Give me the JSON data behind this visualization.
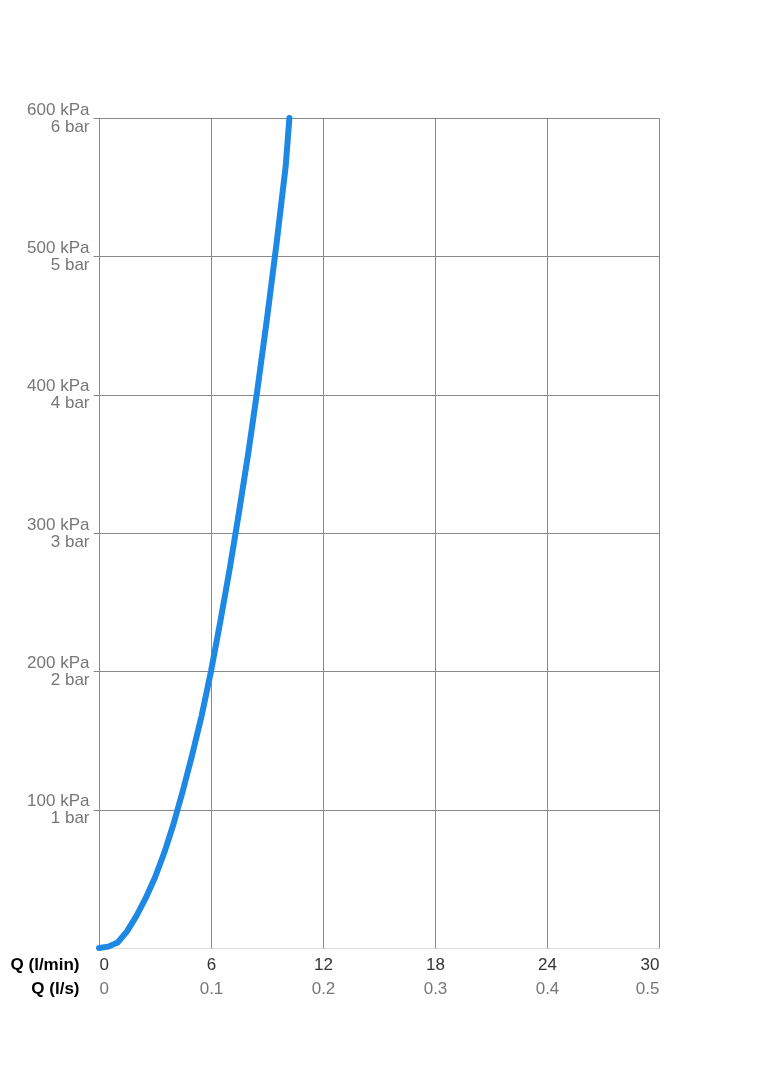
{
  "chart_data": {
    "type": "line",
    "xlabel": "Q (l/min)",
    "x2label": "Q (l/s)",
    "x": [
      0,
      0.5,
      1,
      1.5,
      2,
      2.5,
      3,
      3.5,
      4,
      4.5,
      5,
      5.5,
      6,
      6.5,
      7,
      7.5,
      8,
      8.5,
      9,
      9.5,
      10,
      10.2
    ],
    "series": [
      {
        "color": "#1e88e5",
        "values": [
          0,
          1,
          4,
          12,
          23,
          36,
          51,
          69,
          90,
          114,
          140,
          168,
          200,
          236,
          274,
          315,
          358,
          405,
          455,
          508,
          565,
          600
        ]
      }
    ],
    "xlim": [
      0,
      30
    ],
    "xticks": [
      0,
      6,
      12,
      18,
      24,
      30
    ],
    "x2lim": [
      0,
      0.5
    ],
    "x2ticks": [
      0,
      0.1,
      0.2,
      0.3,
      0.4,
      0.5
    ],
    "ylim": [
      0,
      600
    ],
    "yticks": [
      {
        "value": 100,
        "label": "100 kPa"
      },
      {
        "value": 200,
        "label": "200 kPa"
      },
      {
        "value": 300,
        "label": "300 kPa"
      },
      {
        "value": 400,
        "label": "400 kPa"
      },
      {
        "value": 500,
        "label": "500 kPa"
      },
      {
        "value": 600,
        "label": "600 kPa"
      }
    ],
    "y2lim": [
      0,
      6
    ],
    "y2ticks": [
      {
        "value": 1,
        "label": "1 bar"
      },
      {
        "value": 2,
        "label": "2 bar"
      },
      {
        "value": 3,
        "label": "3 bar"
      },
      {
        "value": 4,
        "label": "4 bar"
      },
      {
        "value": 5,
        "label": "5 bar"
      },
      {
        "value": 6,
        "label": "6 bar"
      }
    ],
    "grid": true,
    "marker": "none",
    "line_style": "solid"
  }
}
